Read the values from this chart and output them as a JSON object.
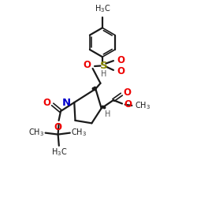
{
  "bg_color": "#ffffff",
  "bond_color": "#1a1a1a",
  "N_color": "#0000cc",
  "O_color": "#ee0000",
  "S_color": "#888800",
  "H_color": "#555555",
  "figsize": [
    2.5,
    2.5
  ],
  "dpi": 100,
  "xlim": [
    0,
    10
  ],
  "ylim": [
    0,
    10
  ]
}
